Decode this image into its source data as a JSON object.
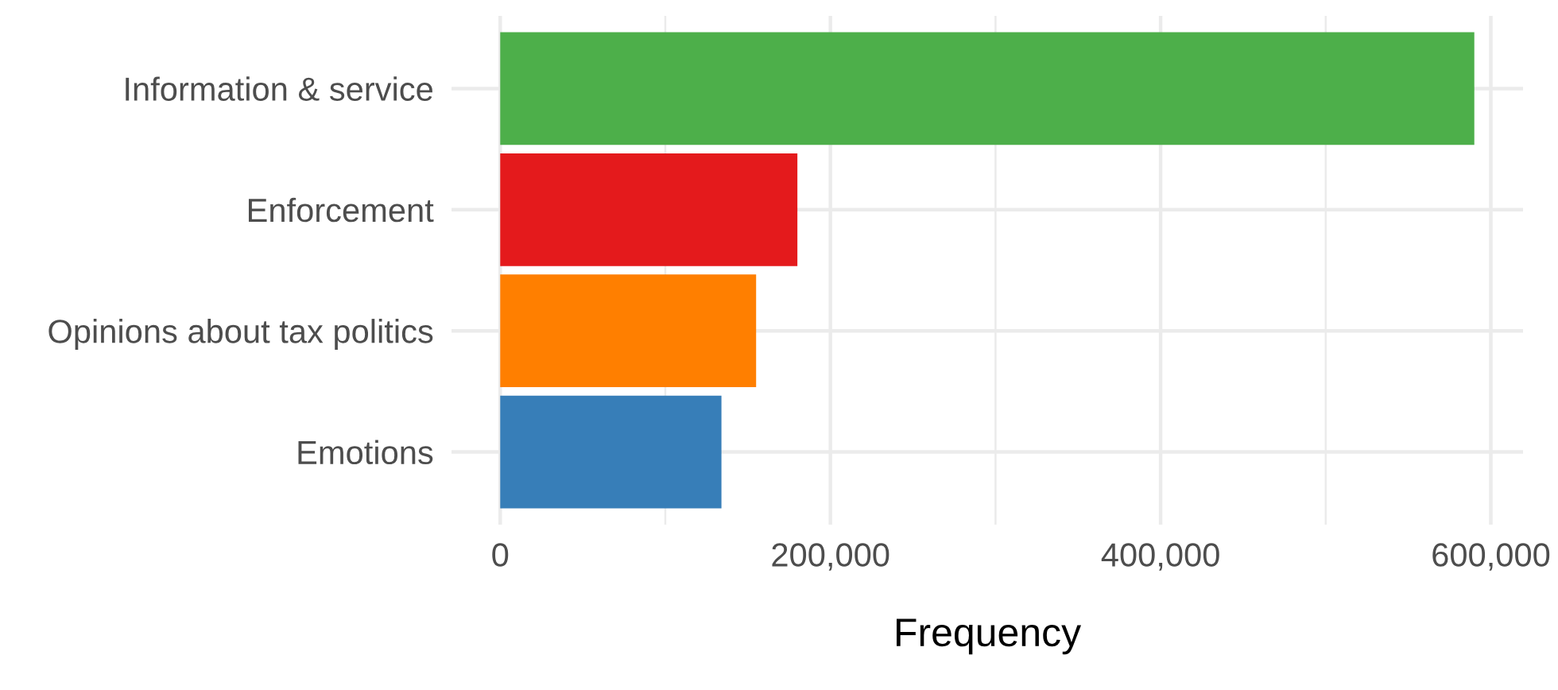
{
  "chart_data": {
    "type": "bar",
    "orientation": "horizontal",
    "xlabel": "Frequency",
    "categories": [
      "Information & service",
      "Enforcement",
      "Opinions about tax politics",
      "Emotions"
    ],
    "values": [
      590000,
      180000,
      155000,
      134000
    ],
    "colors": [
      "#4daf4a",
      "#e41a1c",
      "#ff7f00",
      "#377eb8"
    ],
    "xlim": [
      -29500,
      619500
    ],
    "xticks": [
      {
        "value": 0,
        "label": "0"
      },
      {
        "value": 100000,
        "label": null
      },
      {
        "value": 200000,
        "label": "200,000"
      },
      {
        "value": 300000,
        "label": null
      },
      {
        "value": 400000,
        "label": "400,000"
      },
      {
        "value": 500000,
        "label": null
      },
      {
        "value": 600000,
        "label": "600,000"
      }
    ],
    "grid": true
  }
}
